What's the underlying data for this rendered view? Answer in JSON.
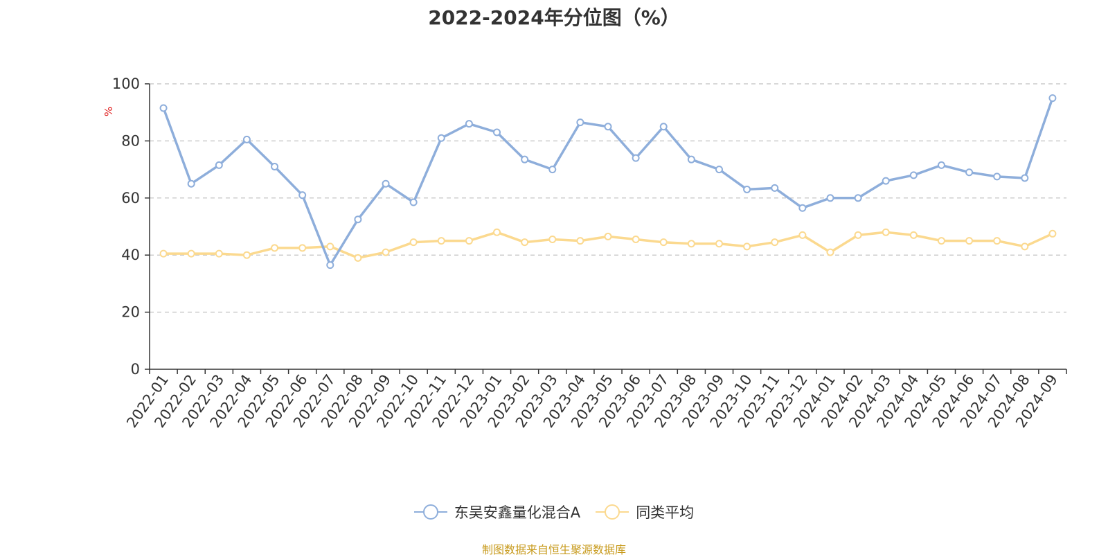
{
  "chart_data": {
    "type": "line",
    "title": "2022-2024年分位图（%）",
    "ylabel": "%",
    "xlabel": "",
    "ylim": [
      0,
      100
    ],
    "yticks": [
      0,
      20,
      40,
      60,
      80,
      100
    ],
    "grid": true,
    "legend_position": "bottom",
    "categories": [
      "2022-01",
      "2022-02",
      "2022-03",
      "2022-04",
      "2022-05",
      "2022-06",
      "2022-07",
      "2022-08",
      "2022-09",
      "2022-10",
      "2022-11",
      "2022-12",
      "2023-01",
      "2023-02",
      "2023-03",
      "2023-04",
      "2023-05",
      "2023-06",
      "2023-07",
      "2023-08",
      "2023-09",
      "2023-10",
      "2023-11",
      "2023-12",
      "2024-01",
      "2024-02",
      "2024-03",
      "2024-04",
      "2024-05",
      "2024-06",
      "2024-07",
      "2024-08",
      "2024-09"
    ],
    "series": [
      {
        "name": "东吴安鑫量化混合A",
        "color": "#8eaedb",
        "values": [
          91.5,
          65,
          71.5,
          80.5,
          71,
          61,
          36.5,
          52.5,
          65,
          58.5,
          81,
          86,
          83,
          73.5,
          70,
          86.5,
          85,
          74,
          85,
          73.5,
          70,
          63,
          63.5,
          56.5,
          60,
          60,
          66,
          68,
          71.5,
          69,
          67.5,
          67,
          95
        ]
      },
      {
        "name": "同类平均",
        "color": "#fbd98f",
        "values": [
          40.5,
          40.5,
          40.5,
          40,
          42.5,
          42.5,
          43,
          39,
          41,
          44.5,
          45,
          45,
          48,
          44.5,
          45.5,
          45,
          46.5,
          45.5,
          44.5,
          44,
          44,
          43,
          44.5,
          47,
          41,
          47,
          48,
          47,
          45,
          45,
          45,
          43,
          47.5
        ]
      }
    ]
  },
  "footer": {
    "source": "制图数据来自恒生聚源数据库"
  }
}
